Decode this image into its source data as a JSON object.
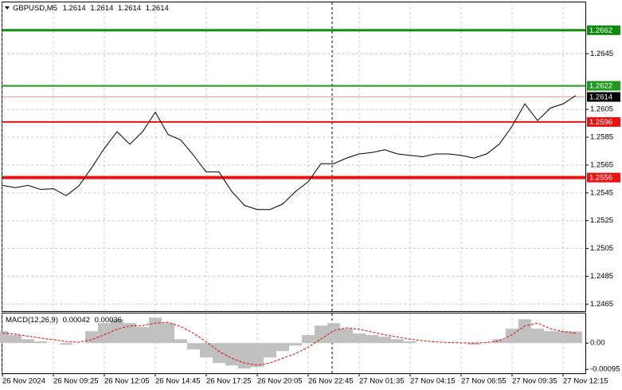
{
  "chart_data": [
    {
      "type": "line",
      "title": "GBPUSD,M5",
      "ohlc": [
        1.2614,
        1.2614,
        1.2614,
        1.2614
      ],
      "categories": [
        "26 Nov 2024",
        null,
        null,
        null,
        "26 Nov 09:25",
        null,
        null,
        null,
        "26 Nov 12:05",
        null,
        null,
        null,
        "26 Nov 14:45",
        null,
        null,
        null,
        "26 Nov 17:25",
        null,
        null,
        null,
        "26 Nov 20:05",
        null,
        null,
        null,
        "26 Nov 22:45",
        null,
        null,
        null,
        "27 Nov 01:35",
        null,
        null,
        null,
        "27 Nov 04:15",
        null,
        null,
        null,
        "27 Nov 06:55",
        null,
        null,
        null,
        "27 Nov 09:35",
        null,
        null,
        null,
        "27 Nov 12:15",
        null
      ],
      "values": [
        1.25504,
        1.25487,
        1.25504,
        1.25475,
        1.2548,
        1.2543,
        1.255,
        1.2563,
        1.2577,
        1.2589,
        1.258,
        1.2589,
        1.2603,
        1.2587,
        1.2583,
        1.2572,
        1.256,
        1.256,
        1.2546,
        1.2536,
        1.2533,
        1.2533,
        1.2537,
        1.2546,
        1.2553,
        1.2566,
        1.2566,
        1.257,
        1.2573,
        1.2574,
        1.2576,
        1.2573,
        1.2572,
        1.2571,
        1.2573,
        1.2573,
        1.2572,
        1.257,
        1.2573,
        1.258,
        1.2593,
        1.2609,
        1.2597,
        1.2606,
        1.2609,
        1.2615
      ],
      "color": "#000000",
      "ylim": [
        1.246,
        1.2682
      ],
      "yticks": [
        1.2465,
        1.2485,
        1.2505,
        1.2525,
        1.2545,
        1.2565,
        1.2585,
        1.2605,
        1.2645
      ],
      "grid": true,
      "levels": [
        {
          "value": 1.2662,
          "color": "#0f8a0f",
          "line_width": 3
        },
        {
          "value": 1.2622,
          "color": "#1f9a1f",
          "line_width": 2
        },
        {
          "value": 1.2614,
          "color": "#000000",
          "line_width": 1
        },
        {
          "value": 1.2596,
          "color": "#ee1111",
          "line_width": 2
        },
        {
          "value": 1.2556,
          "color": "#ee1111",
          "line_width": 4
        }
      ]
    },
    {
      "type": "bar",
      "title": "MACD(12,26,9)",
      "indicator_values": [
        0.00042,
        0.00036
      ],
      "series": [
        {
          "color": "#c0c0c0",
          "values": [
            0.00043,
            0.00029,
            0.00014,
            6e-05,
            0,
            -6e-05,
            0,
            0.00043,
            0.00072,
            0.00086,
            0.00072,
            0.00058,
            0.00092,
            0.00072,
            0.00014,
            -0.00023,
            -0.00052,
            -0.00072,
            -0.00081,
            -0.00092,
            -0.00086,
            -0.00052,
            -0.00029,
            -9e-05,
            0.00029,
            0.00063,
            0.00072,
            0.00052,
            0.00035,
            0.00029,
            0.00023,
            0.00014,
            6e-05,
            0,
            0,
            0,
            0,
            -6e-05,
            0,
            0.00014,
            0.00052,
            0.00086,
            0.00052,
            0.00043,
            0.00043,
            0.00042
          ]
        },
        {
          "color": "#e00000",
          "values": [
            0.00036,
            0.00032,
            0.00025,
            0.00018,
            0.00012,
            6e-05,
            3e-05,
            0.00012,
            0.0003,
            0.0005,
            0.00062,
            0.00063,
            0.00072,
            0.00075,
            0.0006,
            0.00035,
            5e-05,
            -0.0003,
            -0.00055,
            -0.00072,
            -0.0008,
            -0.00072,
            -0.00055,
            -0.00038,
            -0.00015,
            0.00015,
            0.00045,
            0.00055,
            0.0005,
            0.0004,
            0.0003,
            0.00022,
            0.00014,
            8e-05,
            4e-05,
            2e-05,
            1e-05,
            0,
            2e-05,
            8e-05,
            0.0003,
            0.00062,
            0.00072,
            0.00052,
            0.00042,
            0.00036
          ]
        }
      ],
      "ylim": [
        -0.00109,
        0.00107
      ],
      "yticks": [
        {
          "value": 0,
          "label": "0.00"
        },
        -0.00095
      ]
    }
  ]
}
